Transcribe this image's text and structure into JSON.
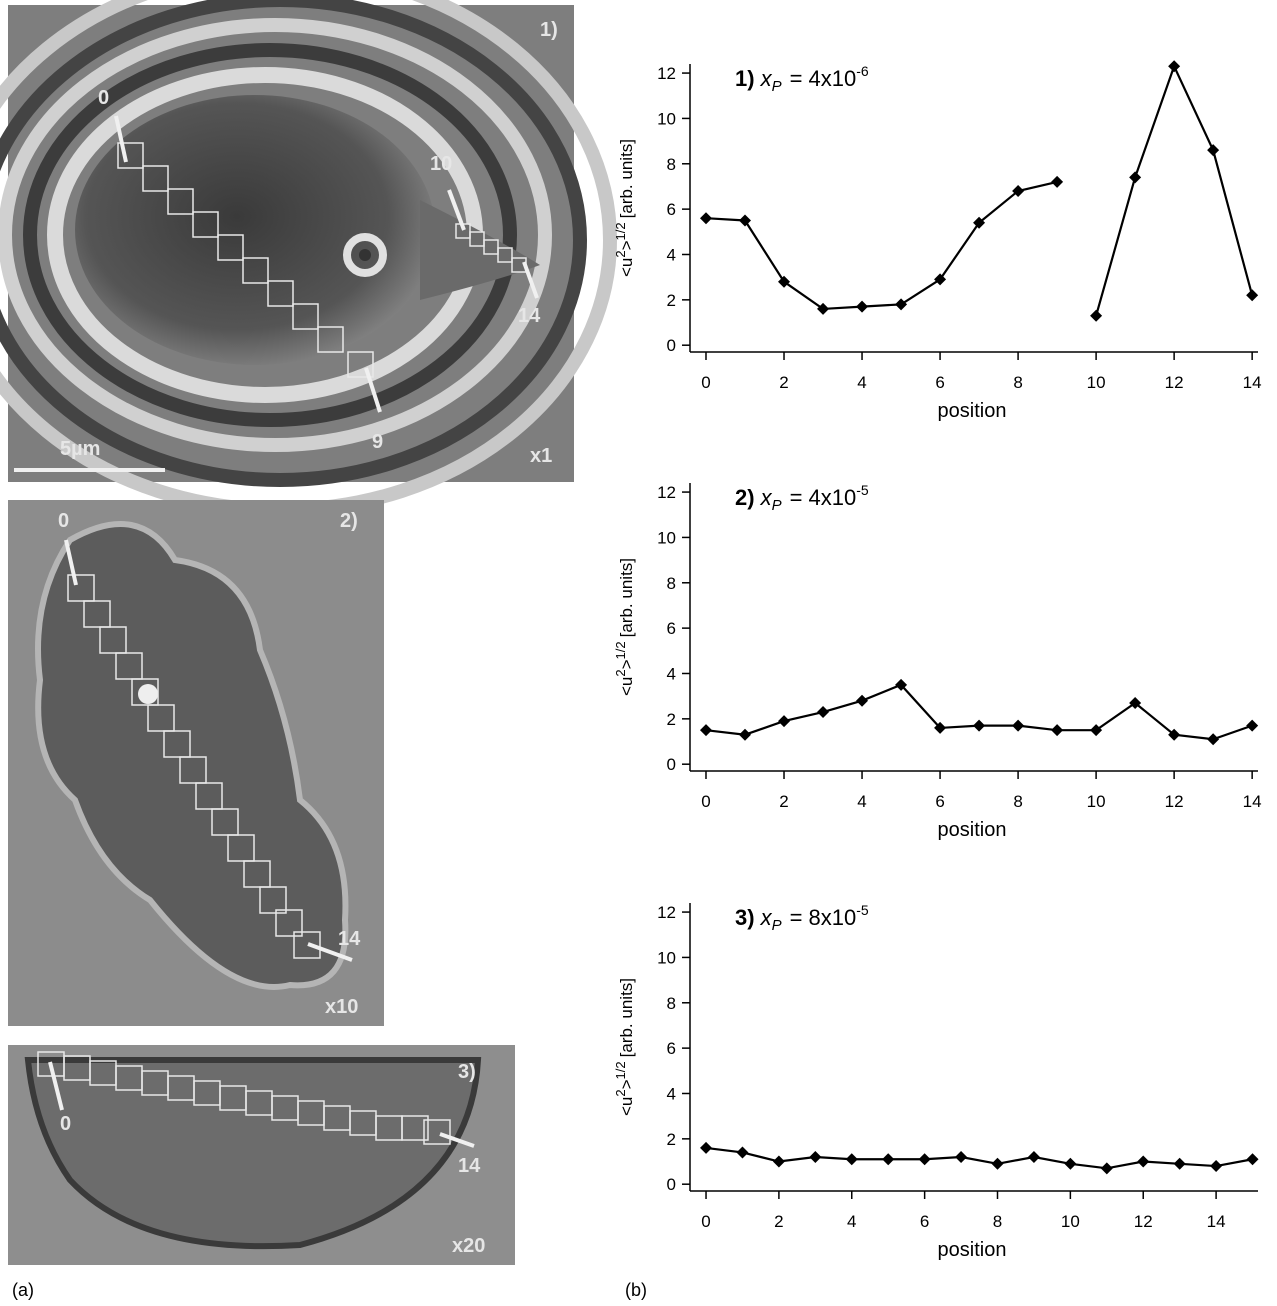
{
  "chart_data": [
    {
      "type": "line",
      "title": [
        "1)",
        "x",
        "P",
        "= 4x10",
        "-6"
      ],
      "xlabel": "position",
      "ylabel": [
        "<u",
        "2",
        ">",
        "1/2",
        "[arb. units]"
      ],
      "series": [
        {
          "color": "#000000",
          "x": [
            0,
            1,
            2,
            3,
            4,
            5,
            6,
            7,
            8,
            9
          ],
          "values": [
            5.6,
            5.5,
            2.8,
            1.6,
            1.7,
            1.8,
            2.9,
            5.4,
            6.8,
            7.2
          ]
        },
        {
          "color": "#000000",
          "x": [
            10,
            11,
            12,
            13,
            14
          ],
          "values": [
            1.3,
            7.4,
            12.3,
            8.6,
            2.2
          ]
        }
      ],
      "xlim": [
        -0.41,
        14.15
      ],
      "ylim": [
        -0.3,
        12.4
      ],
      "xticks": [
        0,
        2,
        4,
        6,
        8,
        10,
        12,
        14
      ],
      "yticks": [
        0,
        2,
        4,
        6,
        8,
        10,
        12
      ]
    },
    {
      "type": "line",
      "title": [
        "2)",
        "x",
        "P",
        "= 4x10",
        "-5"
      ],
      "xlabel": "position",
      "ylabel": [
        "<u",
        "2",
        ">",
        "1/2",
        "[arb. units]"
      ],
      "series": [
        {
          "color": "#000000",
          "x": [
            0,
            1,
            2,
            3,
            4,
            5,
            6,
            7,
            8,
            9,
            10,
            11,
            12,
            13,
            14
          ],
          "values": [
            1.5,
            1.3,
            1.9,
            2.3,
            2.8,
            3.5,
            1.6,
            1.7,
            1.7,
            1.5,
            1.5,
            2.7,
            1.3,
            1.1,
            1.7
          ]
        }
      ],
      "xlim": [
        -0.41,
        14.15
      ],
      "ylim": [
        -0.3,
        12.4
      ],
      "xticks": [
        0,
        2,
        4,
        6,
        8,
        10,
        12,
        14
      ],
      "yticks": [
        0,
        2,
        4,
        6,
        8,
        10,
        12
      ]
    },
    {
      "type": "line",
      "title": [
        "3)",
        "x",
        "P",
        "= 8x10",
        "-5"
      ],
      "xlabel": "position",
      "ylabel": [
        "<u",
        "2",
        ">",
        "1/2",
        "[arb. units]"
      ],
      "series": [
        {
          "color": "#000000",
          "x": [
            0,
            1,
            2,
            3,
            4,
            5,
            6,
            7,
            8,
            9,
            10,
            11,
            12,
            13,
            14,
            15
          ],
          "values": [
            1.6,
            1.4,
            1.0,
            1.2,
            1.1,
            1.1,
            1.1,
            1.2,
            0.9,
            1.2,
            0.9,
            0.7,
            1.0,
            0.9,
            0.8,
            1.1
          ]
        }
      ],
      "xlim": [
        -0.44,
        15.15
      ],
      "ylim": [
        -0.3,
        12.4
      ],
      "xticks": [
        0,
        2,
        4,
        6,
        8,
        10,
        12,
        14
      ],
      "yticks": [
        0,
        2,
        4,
        6,
        8,
        10,
        12
      ]
    }
  ],
  "images": [
    {
      "label": "1)",
      "scale": "x1",
      "scalebar": "5µm",
      "markers": [
        "0",
        "10",
        "14",
        "9"
      ]
    },
    {
      "label": "2)",
      "scale": "x10",
      "markers": [
        "0",
        "14"
      ]
    },
    {
      "label": "3)",
      "scale": "x20",
      "markers": [
        "0",
        "14"
      ]
    }
  ],
  "panels": [
    "(a)",
    "(b)"
  ]
}
